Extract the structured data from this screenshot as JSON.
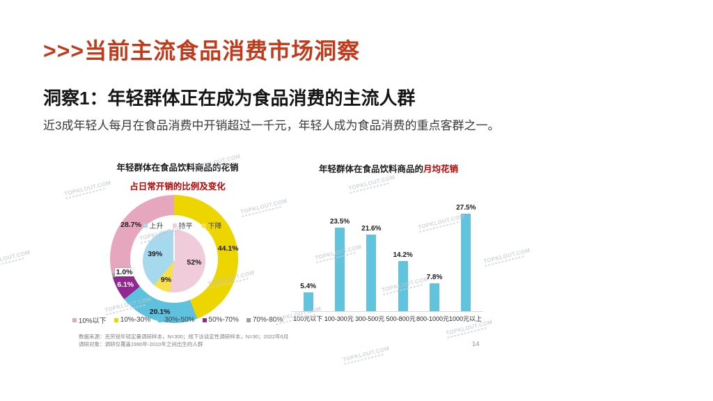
{
  "slide": {
    "header_title": ">>>当前主流食品消费市场洞察",
    "insight_title": "洞察1：年轻群体正在成为食品消费的主流人群",
    "insight_desc": "近3成年轻人每月在食品消费中开销超过一千元，年轻人成为食品消费的重点客群之一。",
    "source_line1": "数据来源：克劳锐年轻定量调研样本，N=300；线下访谈定性调研样本，N=30；2022年6月",
    "source_line2": "调研对象：调研仅覆盖1990年-2010年之间出生的人群",
    "page_number": "14",
    "watermark_text": "TOPKLOUT.COM"
  },
  "colors": {
    "accent_red": "#C23A1A",
    "highlight_red": "#C00000",
    "bar_blue": "#62C3DC",
    "outer_pink": "#E6A6BE",
    "outer_yellow": "#EDD500",
    "outer_blue": "#5EC1DE",
    "outer_purple": "#92278F",
    "outer_gray": "#9D9D9D",
    "inner_pink": "#F0CBDA",
    "inner_yellow": "#F7DF4D",
    "inner_blue": "#A6D9EE"
  },
  "chart_data": [
    {
      "type": "pie",
      "variant": "donut-ring-with-inner-pie",
      "title": "年轻群体在食品饮料商品的花销",
      "subtitle": "占日常开销的比例及变化",
      "outer_ring": {
        "legend": [
          {
            "label": "10%以下",
            "color": "#E6A6BE"
          },
          {
            "label": "10%-30%",
            "color": "#EDD500"
          },
          {
            "label": "30%-50%",
            "color": "#5EC1DE"
          },
          {
            "label": "50%-70%",
            "color": "#92278F"
          },
          {
            "label": "70%-80%",
            "color": "#9D9D9D"
          }
        ],
        "segments_clockwise_from_top": [
          {
            "label": "10%-30%",
            "value": 44.1,
            "display": "44.1%",
            "color": "#EDD500"
          },
          {
            "label": "30%-50%",
            "value": 20.1,
            "display": "20.1%",
            "color": "#5EC1DE"
          },
          {
            "label": "50%-70%",
            "value": 6.1,
            "display": "6.1%",
            "color": "#92278F"
          },
          {
            "label": "70%-80%",
            "value": 1.0,
            "display": "1.0%",
            "color": "#9D9D9D"
          },
          {
            "label": "10%以下",
            "value": 28.7,
            "display": "28.7%",
            "color": "#E6A6BE"
          }
        ]
      },
      "inner_pie": {
        "legend": [
          {
            "label": "上升",
            "color": "#A6D9EE"
          },
          {
            "label": "持平",
            "color": "#F0CBDA"
          },
          {
            "label": "下降",
            "color": "#F7DF4D"
          }
        ],
        "segments_clockwise_from_top": [
          {
            "label": "持平",
            "value": 52,
            "display": "52%",
            "color": "#F0CBDA"
          },
          {
            "label": "下降",
            "value": 9,
            "display": "9%",
            "color": "#F7DF4D"
          },
          {
            "label": "上升",
            "value": 39,
            "display": "39%",
            "color": "#A6D9EE"
          }
        ]
      }
    },
    {
      "type": "bar",
      "title": "年轻群体在食品饮料商品的月均花销",
      "title_prefix": "年轻群体在食品饮料商品的",
      "title_highlight": "月均花销",
      "categories": [
        "100元以下",
        "100-300元",
        "300-500元",
        "500-800元",
        "800-1000元",
        "1000元以上"
      ],
      "values": [
        5.4,
        23.5,
        21.6,
        14.2,
        7.8,
        27.5
      ],
      "labels": [
        "5.4%",
        "23.5%",
        "21.6%",
        "14.2%",
        "7.8%",
        "27.5%"
      ],
      "unit": "%",
      "bar_color": "#62C3DC",
      "ylim": [
        0,
        30
      ],
      "grid": false,
      "legend_position": "none"
    }
  ]
}
